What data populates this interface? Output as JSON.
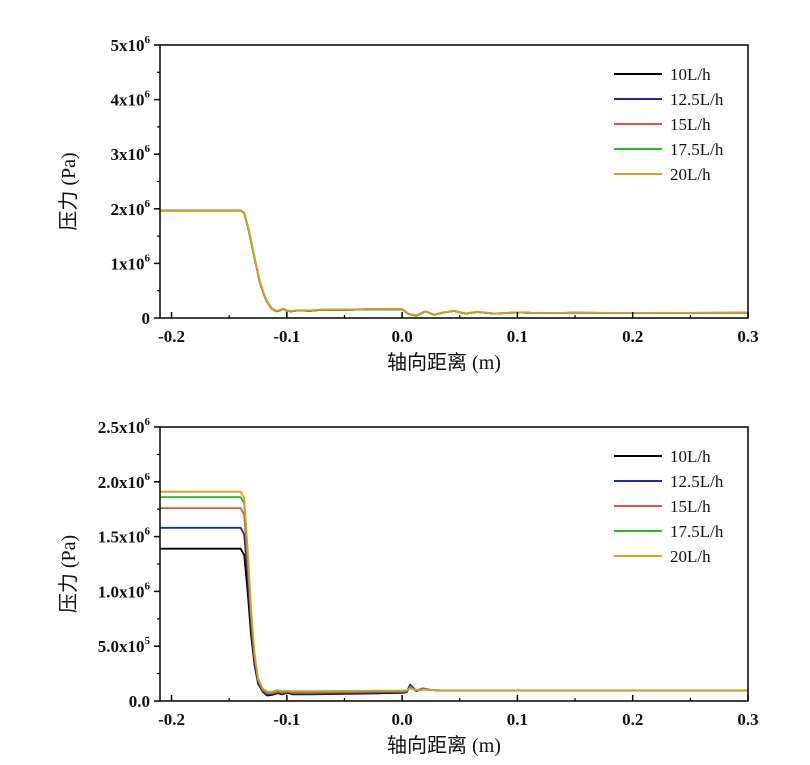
{
  "chart_data": [
    {
      "type": "line",
      "xlabel": "轴向距离 (m)",
      "ylabel": "压力 (Pa)",
      "xlim": [
        -0.21,
        0.3
      ],
      "ylim": [
        0,
        5000000
      ],
      "xticks": [
        {
          "v": -0.2,
          "label": "-0.2"
        },
        {
          "v": -0.1,
          "label": "-0.1"
        },
        {
          "v": 0.0,
          "label": "0.0"
        },
        {
          "v": 0.1,
          "label": "0.1"
        },
        {
          "v": 0.2,
          "label": "0.2"
        },
        {
          "v": 0.3,
          "label": "0.3"
        }
      ],
      "yticks": [
        {
          "v": 0,
          "base": "0",
          "exp": ""
        },
        {
          "v": 1000000,
          "base": "1x10",
          "exp": "6"
        },
        {
          "v": 2000000,
          "base": "2x10",
          "exp": "6"
        },
        {
          "v": 3000000,
          "base": "3x10",
          "exp": "6"
        },
        {
          "v": 4000000,
          "base": "4x10",
          "exp": "6"
        },
        {
          "v": 5000000,
          "base": "5x10",
          "exp": "6"
        }
      ],
      "legend_position": "top-right",
      "series": [
        {
          "name": "10L/h",
          "color": "#000000",
          "x": [
            -0.21,
            -0.14,
            -0.137,
            -0.133,
            -0.128,
            -0.123,
            -0.118,
            -0.113,
            -0.109,
            -0.106,
            -0.103,
            -0.1,
            -0.096,
            -0.09,
            -0.08,
            -0.07,
            -0.06,
            -0.05,
            -0.03,
            -0.01,
            0.0,
            0.005,
            0.012,
            0.02,
            0.028,
            0.036,
            0.045,
            0.055,
            0.065,
            0.08,
            0.1,
            0.12,
            0.15,
            0.2,
            0.25,
            0.3
          ],
          "values": [
            1970000,
            1970000,
            1920000,
            1600000,
            1100000,
            620000,
            330000,
            170000,
            120000,
            140000,
            170000,
            130000,
            120000,
            140000,
            130000,
            150000,
            150000,
            150000,
            160000,
            160000,
            160000,
            80000,
            40000,
            120000,
            60000,
            100000,
            130000,
            80000,
            110000,
            80000,
            100000,
            90000,
            95000,
            92000,
            94000,
            95000
          ]
        },
        {
          "name": "12.5L/h",
          "color": "#1f2aa0",
          "x": [
            -0.21,
            -0.14,
            -0.137,
            -0.133,
            -0.128,
            -0.123,
            -0.118,
            -0.113,
            -0.109,
            -0.106,
            -0.103,
            -0.1,
            -0.096,
            -0.09,
            -0.08,
            -0.07,
            -0.06,
            -0.05,
            -0.03,
            -0.01,
            0.0,
            0.005,
            0.012,
            0.02,
            0.028,
            0.036,
            0.045,
            0.055,
            0.065,
            0.08,
            0.1,
            0.12,
            0.15,
            0.2,
            0.25,
            0.3
          ],
          "values": [
            1970000,
            1970000,
            1920000,
            1600000,
            1100000,
            620000,
            330000,
            170000,
            120000,
            140000,
            170000,
            130000,
            120000,
            140000,
            130000,
            150000,
            150000,
            150000,
            160000,
            160000,
            160000,
            80000,
            40000,
            120000,
            60000,
            100000,
            130000,
            80000,
            110000,
            80000,
            100000,
            90000,
            95000,
            92000,
            94000,
            95000
          ]
        },
        {
          "name": "15L/h",
          "color": "#e05050",
          "x": [
            -0.21,
            -0.14,
            -0.137,
            -0.133,
            -0.128,
            -0.123,
            -0.118,
            -0.113,
            -0.109,
            -0.106,
            -0.103,
            -0.1,
            -0.096,
            -0.09,
            -0.08,
            -0.07,
            -0.06,
            -0.05,
            -0.03,
            -0.01,
            0.0,
            0.005,
            0.012,
            0.02,
            0.028,
            0.036,
            0.045,
            0.055,
            0.065,
            0.08,
            0.1,
            0.12,
            0.15,
            0.2,
            0.25,
            0.3
          ],
          "values": [
            1970000,
            1970000,
            1920000,
            1600000,
            1100000,
            620000,
            330000,
            170000,
            120000,
            140000,
            170000,
            130000,
            120000,
            140000,
            130000,
            150000,
            150000,
            150000,
            160000,
            160000,
            160000,
            80000,
            40000,
            120000,
            60000,
            100000,
            130000,
            80000,
            110000,
            80000,
            100000,
            90000,
            95000,
            92000,
            94000,
            95000
          ]
        },
        {
          "name": "17.5L/h",
          "color": "#22bb22",
          "x": [
            -0.21,
            -0.14,
            -0.137,
            -0.133,
            -0.128,
            -0.123,
            -0.118,
            -0.113,
            -0.109,
            -0.106,
            -0.103,
            -0.1,
            -0.096,
            -0.09,
            -0.08,
            -0.07,
            -0.06,
            -0.05,
            -0.03,
            -0.01,
            0.0,
            0.005,
            0.012,
            0.02,
            0.028,
            0.036,
            0.045,
            0.055,
            0.065,
            0.08,
            0.1,
            0.12,
            0.15,
            0.2,
            0.25,
            0.3
          ],
          "values": [
            1970000,
            1970000,
            1920000,
            1600000,
            1100000,
            620000,
            330000,
            170000,
            120000,
            140000,
            170000,
            130000,
            120000,
            140000,
            130000,
            150000,
            150000,
            150000,
            160000,
            160000,
            160000,
            80000,
            40000,
            120000,
            60000,
            100000,
            130000,
            80000,
            110000,
            80000,
            100000,
            90000,
            95000,
            92000,
            94000,
            95000
          ]
        },
        {
          "name": "20L/h",
          "color": "#d4a020",
          "x": [
            -0.21,
            -0.14,
            -0.137,
            -0.133,
            -0.128,
            -0.123,
            -0.118,
            -0.113,
            -0.109,
            -0.106,
            -0.103,
            -0.1,
            -0.096,
            -0.09,
            -0.08,
            -0.07,
            -0.06,
            -0.05,
            -0.03,
            -0.01,
            0.0,
            0.005,
            0.012,
            0.02,
            0.028,
            0.036,
            0.045,
            0.055,
            0.065,
            0.08,
            0.1,
            0.12,
            0.15,
            0.2,
            0.25,
            0.3
          ],
          "values": [
            1960000,
            1960000,
            1920000,
            1620000,
            1120000,
            640000,
            340000,
            180000,
            130000,
            150000,
            175000,
            140000,
            130000,
            145000,
            140000,
            155000,
            155000,
            155000,
            165000,
            165000,
            165000,
            85000,
            50000,
            125000,
            65000,
            105000,
            135000,
            85000,
            115000,
            85000,
            100000,
            92000,
            96000,
            93000,
            95000,
            96000
          ]
        }
      ]
    },
    {
      "type": "line",
      "xlabel": "轴向距离 (m)",
      "ylabel": "压力 (Pa)",
      "xlim": [
        -0.21,
        0.3
      ],
      "ylim": [
        0,
        2500000
      ],
      "xticks": [
        {
          "v": -0.2,
          "label": "-0.2"
        },
        {
          "v": -0.1,
          "label": "-0.1"
        },
        {
          "v": 0.0,
          "label": "0.0"
        },
        {
          "v": 0.1,
          "label": "0.1"
        },
        {
          "v": 0.2,
          "label": "0.2"
        },
        {
          "v": 0.3,
          "label": "0.3"
        }
      ],
      "yticks": [
        {
          "v": 0,
          "base": "0.0",
          "exp": ""
        },
        {
          "v": 500000,
          "base": "5.0x10",
          "exp": "5"
        },
        {
          "v": 1000000,
          "base": "1.0x10",
          "exp": "6"
        },
        {
          "v": 1500000,
          "base": "1.5x10",
          "exp": "6"
        },
        {
          "v": 2000000,
          "base": "2.0x10",
          "exp": "6"
        },
        {
          "v": 2500000,
          "base": "2.5x10",
          "exp": "6"
        }
      ],
      "legend_position": "top-right",
      "series": [
        {
          "name": "10L/h",
          "color": "#000000",
          "x": [
            -0.21,
            -0.14,
            -0.137,
            -0.134,
            -0.131,
            -0.128,
            -0.125,
            -0.121,
            -0.117,
            -0.113,
            -0.108,
            -0.104,
            -0.1,
            -0.095,
            -0.08,
            -0.05,
            -0.02,
            0.0,
            0.004,
            0.007,
            0.012,
            0.018,
            0.025,
            0.035,
            0.05,
            0.1,
            0.2,
            0.3
          ],
          "values": [
            1390000,
            1390000,
            1330000,
            1000000,
            600000,
            330000,
            160000,
            85000,
            50000,
            55000,
            70000,
            60000,
            75000,
            60000,
            60000,
            65000,
            70000,
            75000,
            80000,
            140000,
            90000,
            110000,
            100000,
            95000,
            95000,
            95000,
            95000,
            95000
          ]
        },
        {
          "name": "12.5L/h",
          "color": "#1f2aa0",
          "x": [
            -0.21,
            -0.14,
            -0.137,
            -0.134,
            -0.131,
            -0.128,
            -0.125,
            -0.121,
            -0.117,
            -0.113,
            -0.108,
            -0.104,
            -0.1,
            -0.095,
            -0.08,
            -0.05,
            -0.02,
            0.0,
            0.004,
            0.007,
            0.012,
            0.018,
            0.025,
            0.035,
            0.05,
            0.1,
            0.2,
            0.3
          ],
          "values": [
            1580000,
            1580000,
            1520000,
            1150000,
            680000,
            360000,
            170000,
            90000,
            60000,
            60000,
            75000,
            65000,
            80000,
            65000,
            65000,
            70000,
            75000,
            80000,
            85000,
            150000,
            95000,
            115000,
            100000,
            95000,
            95000,
            95000,
            95000,
            95000
          ]
        },
        {
          "name": "15L/h",
          "color": "#e05050",
          "x": [
            -0.21,
            -0.14,
            -0.137,
            -0.134,
            -0.131,
            -0.128,
            -0.125,
            -0.121,
            -0.117,
            -0.113,
            -0.108,
            -0.104,
            -0.1,
            -0.095,
            -0.08,
            -0.05,
            -0.02,
            0.0,
            0.004,
            0.007,
            0.012,
            0.018,
            0.025,
            0.035,
            0.05,
            0.1,
            0.2,
            0.3
          ],
          "values": [
            1760000,
            1760000,
            1700000,
            1280000,
            760000,
            400000,
            190000,
            100000,
            70000,
            70000,
            85000,
            75000,
            85000,
            75000,
            75000,
            80000,
            85000,
            85000,
            90000,
            130000,
            95000,
            110000,
            100000,
            96000,
            96000,
            96000,
            96000,
            96000
          ]
        },
        {
          "name": "17.5L/h",
          "color": "#22bb22",
          "x": [
            -0.21,
            -0.14,
            -0.137,
            -0.134,
            -0.131,
            -0.128,
            -0.125,
            -0.121,
            -0.117,
            -0.113,
            -0.108,
            -0.104,
            -0.1,
            -0.095,
            -0.08,
            -0.05,
            -0.02,
            0.0,
            0.004,
            0.007,
            0.012,
            0.018,
            0.025,
            0.035,
            0.05,
            0.1,
            0.2,
            0.3
          ],
          "values": [
            1860000,
            1860000,
            1800000,
            1360000,
            810000,
            420000,
            200000,
            110000,
            80000,
            80000,
            95000,
            85000,
            90000,
            85000,
            85000,
            88000,
            90000,
            90000,
            95000,
            120000,
            98000,
            105000,
            100000,
            97000,
            97000,
            97000,
            97000,
            97000
          ]
        },
        {
          "name": "20L/h",
          "color": "#d4a020",
          "x": [
            -0.21,
            -0.14,
            -0.137,
            -0.134,
            -0.131,
            -0.128,
            -0.125,
            -0.121,
            -0.117,
            -0.113,
            -0.108,
            -0.104,
            -0.1,
            -0.095,
            -0.08,
            -0.05,
            -0.02,
            0.0,
            0.004,
            0.007,
            0.012,
            0.018,
            0.025,
            0.035,
            0.05,
            0.1,
            0.2,
            0.3
          ],
          "values": [
            1910000,
            1910000,
            1850000,
            1400000,
            840000,
            440000,
            210000,
            115000,
            85000,
            85000,
            100000,
            90000,
            95000,
            90000,
            90000,
            92000,
            95000,
            95000,
            98000,
            115000,
            100000,
            103000,
            100000,
            98000,
            98000,
            98000,
            98000,
            98000
          ]
        }
      ]
    }
  ]
}
